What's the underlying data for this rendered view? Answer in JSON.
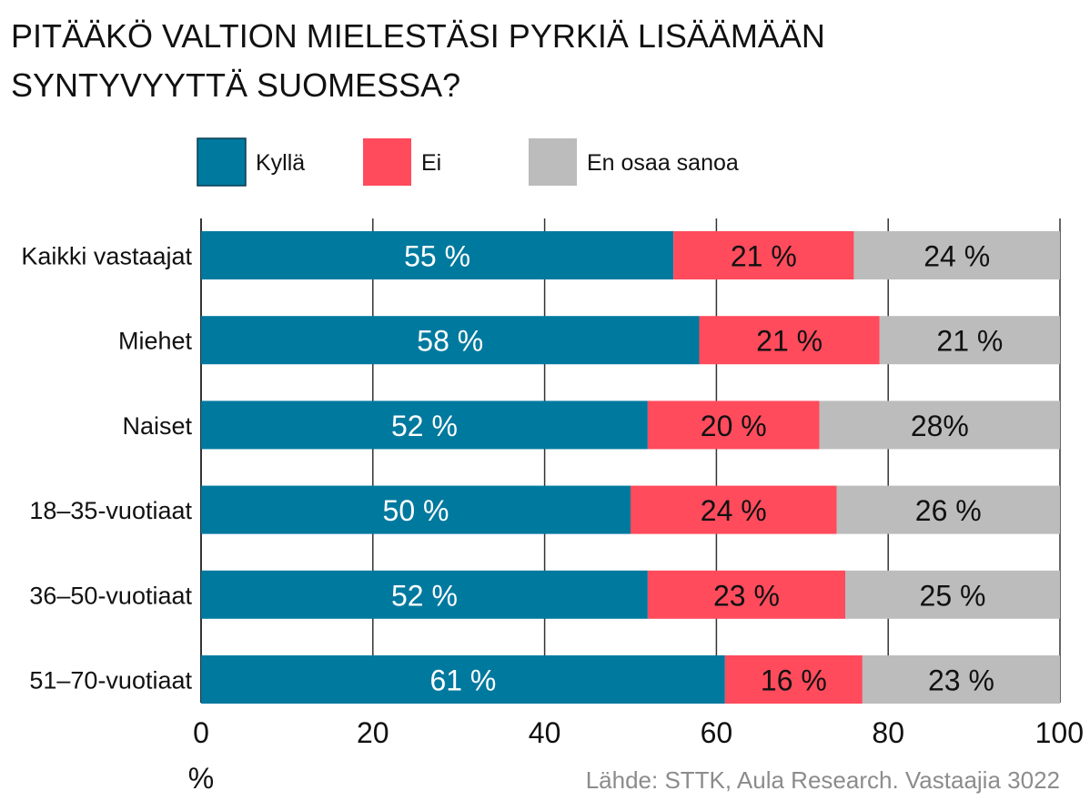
{
  "colors": {
    "Kyllä": "#00799f",
    "Ei": "#ff4b5c",
    "En osaa sanoa": "#bcbcbc",
    "grid": "#333333",
    "source": "#8c8c8c"
  },
  "chart_data": {
    "type": "bar",
    "orientation": "horizontal",
    "stacked": true,
    "title_lines": [
      "PITÄÄKÖ VALTION MIELESTÄSI PYRKIÄ LISÄÄMÄÄN",
      "SYNTYVYYTTÄ SUOMESSA?"
    ],
    "categories": [
      "Kaikki vastaajat",
      "Miehet",
      "Naiset",
      "18–35-vuotiaat",
      "36–50-vuotiaat",
      "51–70-vuotiaat"
    ],
    "series": [
      {
        "name": "Kyllä",
        "values": [
          55,
          58,
          52,
          50,
          52,
          61
        ],
        "labels": [
          "55 %",
          "58 %",
          "52 %",
          "50 %",
          "52 %",
          "61 %"
        ]
      },
      {
        "name": "Ei",
        "values": [
          21,
          21,
          20,
          24,
          23,
          16
        ],
        "labels": [
          "21 %",
          "21 %",
          "20 %",
          "24 %",
          "23 %",
          "16 %"
        ]
      },
      {
        "name": "En osaa sanoa",
        "values": [
          24,
          21,
          28,
          26,
          25,
          23
        ],
        "labels": [
          "24 %",
          "21 %",
          "28%",
          "26 %",
          "25 %",
          "23 %"
        ]
      }
    ],
    "xlim": [
      0,
      100
    ],
    "xticks": [
      "0",
      "20",
      "40",
      "60",
      "80",
      "100"
    ],
    "xlabel": "%",
    "grid": true,
    "legend_position": "top",
    "source": "Lähde: STTK, Aula Research. Vastaajia 3022"
  }
}
